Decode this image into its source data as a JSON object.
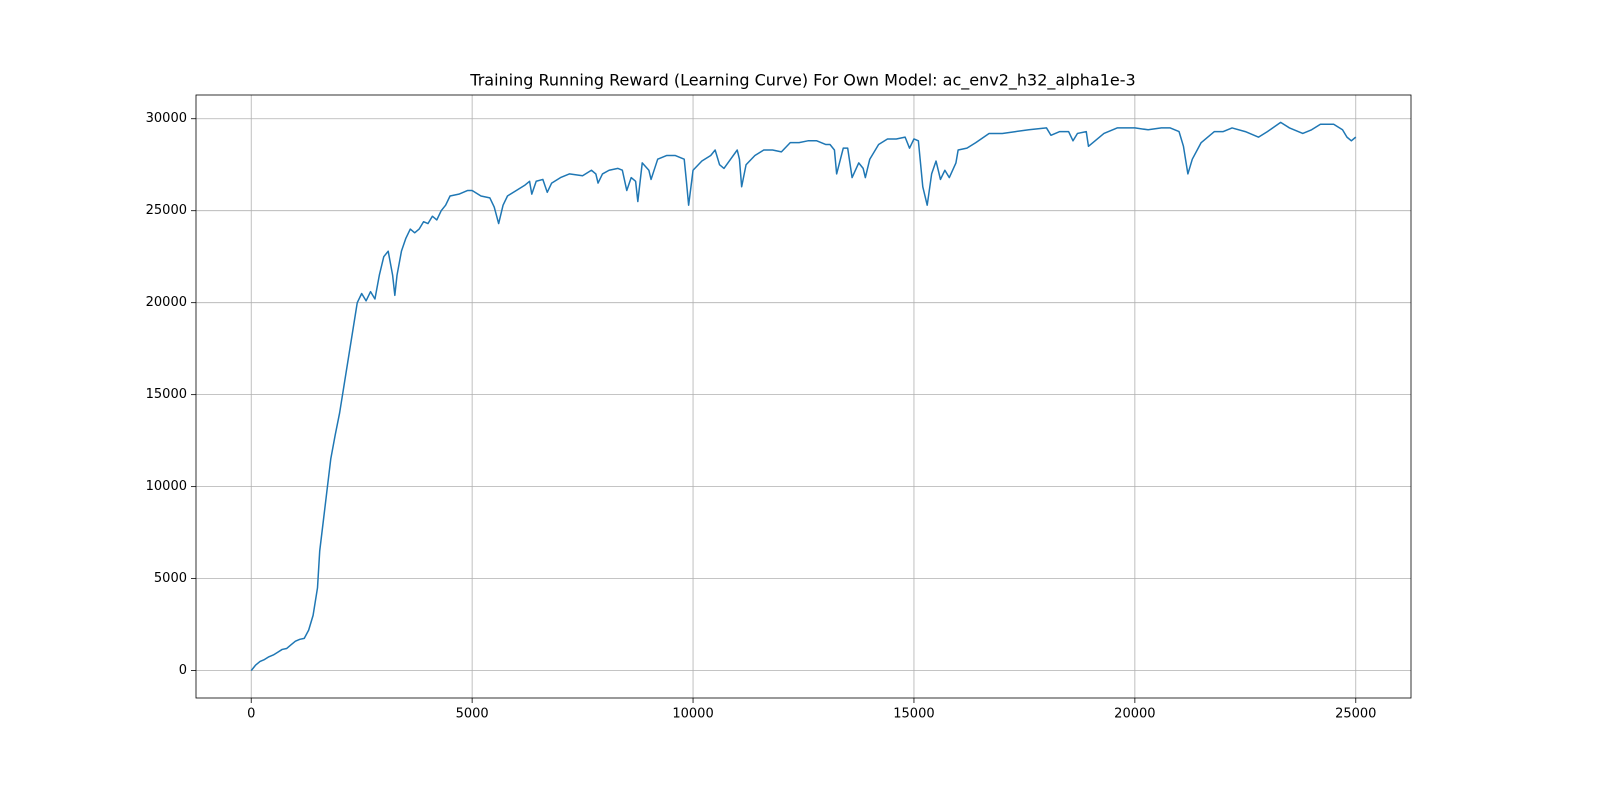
{
  "chart_data": {
    "type": "line",
    "title": "Training Running Reward (Learning Curve) For Own Model: ac_env2_h32_alpha1e-3",
    "color": "#1f77b4",
    "grid": true,
    "xlim": [
      -1250,
      26250
    ],
    "ylim": [
      -1490,
      31290
    ],
    "xticks": [
      0,
      5000,
      10000,
      15000,
      20000,
      25000
    ],
    "yticks": [
      0,
      5000,
      10000,
      15000,
      20000,
      25000,
      30000
    ],
    "x": [
      0,
      100,
      200,
      300,
      400,
      500,
      600,
      700,
      800,
      900,
      1000,
      1100,
      1200,
      1300,
      1400,
      1500,
      1550,
      1600,
      1700,
      1800,
      1900,
      2000,
      2100,
      2200,
      2300,
      2400,
      2500,
      2600,
      2700,
      2800,
      2900,
      3000,
      3100,
      3200,
      3250,
      3300,
      3400,
      3500,
      3600,
      3700,
      3800,
      3900,
      4000,
      4100,
      4200,
      4300,
      4400,
      4500,
      4700,
      4900,
      5000,
      5200,
      5400,
      5500,
      5600,
      5700,
      5800,
      6000,
      6200,
      6300,
      6350,
      6450,
      6600,
      6700,
      6800,
      7000,
      7200,
      7500,
      7700,
      7800,
      7850,
      7950,
      8100,
      8300,
      8400,
      8500,
      8600,
      8700,
      8750,
      8850,
      9000,
      9050,
      9200,
      9400,
      9600,
      9800,
      9850,
      9900,
      10000,
      10200,
      10400,
      10500,
      10600,
      10700,
      10850,
      11000,
      11050,
      11100,
      11200,
      11400,
      11600,
      11800,
      12000,
      12200,
      12400,
      12600,
      12800,
      13000,
      13100,
      13200,
      13250,
      13400,
      13500,
      13600,
      13750,
      13850,
      13900,
      14000,
      14200,
      14400,
      14600,
      14800,
      14900,
      15000,
      15100,
      15200,
      15300,
      15400,
      15500,
      15600,
      15700,
      15800,
      15950,
      16000,
      16200,
      16400,
      16700,
      17000,
      17300,
      17600,
      18000,
      18100,
      18300,
      18500,
      18600,
      18700,
      18900,
      18950,
      19100,
      19300,
      19600,
      20000,
      20300,
      20600,
      20800,
      21000,
      21100,
      21200,
      21300,
      21500,
      21800,
      22000,
      22200,
      22500,
      22800,
      23000,
      23300,
      23500,
      23800,
      24000,
      24200,
      24500,
      24700,
      24800,
      24900,
      25000
    ],
    "values": [
      0,
      300,
      500,
      600,
      750,
      850,
      1000,
      1150,
      1200,
      1400,
      1600,
      1700,
      1750,
      2200,
      3000,
      4500,
      6500,
      7500,
      9500,
      11500,
      12800,
      14000,
      15500,
      17000,
      18500,
      20000,
      20500,
      20100,
      20600,
      20200,
      21500,
      22500,
      22800,
      21500,
      20400,
      21500,
      22800,
      23500,
      24000,
      23800,
      24000,
      24400,
      24300,
      24700,
      24500,
      25000,
      25300,
      25800,
      25900,
      26100,
      26100,
      25800,
      25700,
      25200,
      24300,
      25300,
      25800,
      26100,
      26400,
      26600,
      25900,
      26600,
      26700,
      26000,
      26500,
      26800,
      27000,
      26900,
      27200,
      27000,
      26500,
      27000,
      27200,
      27300,
      27200,
      26100,
      26800,
      26600,
      25500,
      27600,
      27200,
      26700,
      27800,
      28000,
      28000,
      27800,
      26600,
      25300,
      27200,
      27700,
      28000,
      28300,
      27500,
      27300,
      27800,
      28300,
      27800,
      26300,
      27500,
      28000,
      28300,
      28300,
      28200,
      28700,
      28700,
      28800,
      28800,
      28600,
      28600,
      28300,
      27000,
      28400,
      28400,
      26800,
      27600,
      27300,
      26800,
      27800,
      28600,
      28900,
      28900,
      29000,
      28400,
      28900,
      28800,
      26300,
      25300,
      27000,
      27700,
      26700,
      27200,
      26800,
      27600,
      28300,
      28400,
      28700,
      29200,
      29200,
      29300,
      29400,
      29500,
      29100,
      29300,
      29300,
      28800,
      29200,
      29300,
      28500,
      28800,
      29200,
      29500,
      29500,
      29400,
      29500,
      29500,
      29300,
      28500,
      27000,
      27800,
      28700,
      29300,
      29300,
      29500,
      29300,
      29000,
      29300,
      29800,
      29500,
      29200,
      29400,
      29700,
      29700,
      29400,
      29000,
      28800,
      29000
    ]
  }
}
